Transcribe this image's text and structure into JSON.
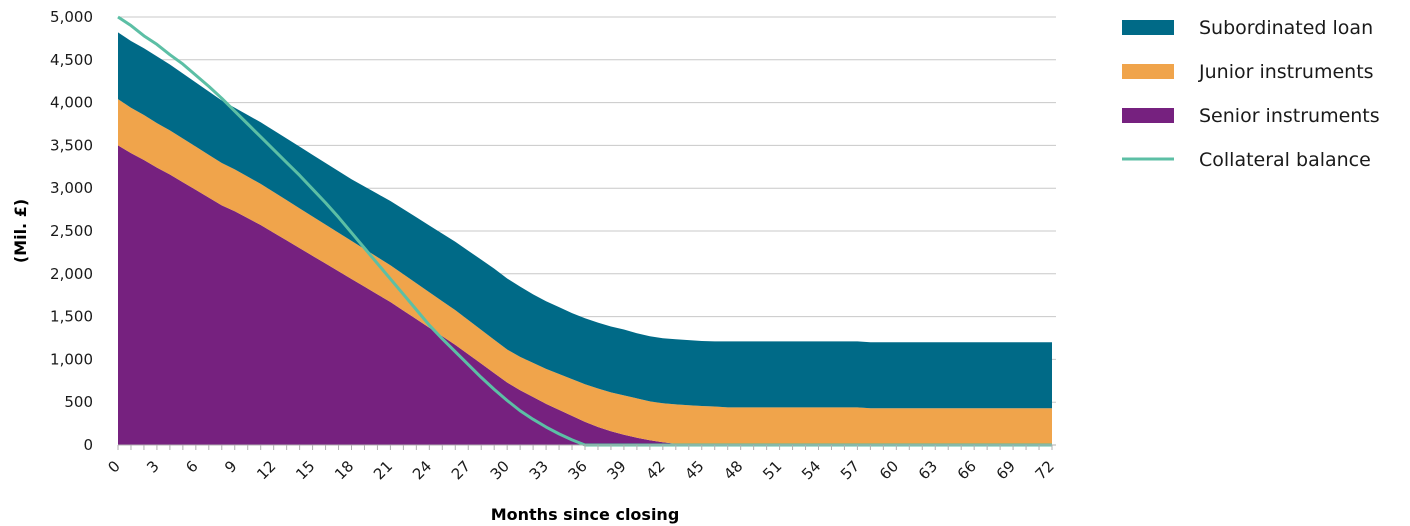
{
  "chart_data": {
    "type": "area",
    "stacked": true,
    "xlabel": "Months since closing",
    "ylabel": "(Mil. £)",
    "x": [
      0,
      1,
      2,
      3,
      4,
      5,
      6,
      7,
      8,
      9,
      10,
      11,
      12,
      13,
      14,
      15,
      16,
      17,
      18,
      19,
      20,
      21,
      22,
      23,
      24,
      25,
      26,
      27,
      28,
      29,
      30,
      31,
      32,
      33,
      34,
      35,
      36,
      37,
      38,
      39,
      40,
      41,
      42,
      43,
      44,
      45,
      46,
      47,
      48,
      49,
      50,
      51,
      52,
      53,
      54,
      55,
      56,
      57,
      58,
      59,
      60,
      61,
      62,
      63,
      64,
      65,
      66,
      67,
      68,
      69,
      70,
      71,
      72
    ],
    "xticks": [
      0,
      3,
      6,
      9,
      12,
      15,
      18,
      21,
      24,
      27,
      30,
      33,
      36,
      39,
      42,
      45,
      48,
      51,
      54,
      57,
      60,
      63,
      66,
      69,
      72
    ],
    "xlim": [
      0,
      72
    ],
    "ylim": [
      0,
      5000
    ],
    "yticks": [
      0,
      500,
      1000,
      1500,
      2000,
      2500,
      3000,
      3500,
      4000,
      4500,
      5000
    ],
    "ytick_labels": [
      "0",
      "500",
      "1,000",
      "1,500",
      "2,000",
      "2,500",
      "3,000",
      "3,500",
      "4,000",
      "4,500",
      "5,000"
    ],
    "grid": "horizontal",
    "legend_position": "top-right",
    "series": [
      {
        "name": "Senior instruments",
        "kind": "area",
        "color": "#76217F",
        "values": [
          3500,
          3410,
          3330,
          3240,
          3160,
          3070,
          2980,
          2890,
          2800,
          2730,
          2650,
          2570,
          2480,
          2390,
          2300,
          2210,
          2120,
          2030,
          1940,
          1850,
          1760,
          1670,
          1570,
          1470,
          1370,
          1270,
          1170,
          1060,
          950,
          840,
          730,
          640,
          560,
          480,
          410,
          340,
          270,
          210,
          160,
          120,
          85,
          55,
          32,
          15,
          5,
          0,
          0,
          0,
          0,
          0,
          0,
          0,
          0,
          0,
          0,
          0,
          0,
          0,
          0,
          0,
          0,
          0,
          0,
          0,
          0,
          0,
          0,
          0,
          0,
          0,
          0,
          0,
          0
        ]
      },
      {
        "name": "Junior instruments",
        "kind": "area",
        "color": "#F0A44B",
        "values": [
          540,
          530,
          525,
          520,
          515,
          510,
          505,
          500,
          495,
          490,
          485,
          480,
          475,
          470,
          465,
          460,
          455,
          450,
          445,
          440,
          435,
          430,
          425,
          420,
          415,
          410,
          405,
          400,
          395,
          390,
          385,
          390,
          400,
          410,
          420,
          430,
          440,
          450,
          455,
          460,
          460,
          455,
          455,
          460,
          460,
          455,
          450,
          440,
          440,
          440,
          440,
          440,
          440,
          440,
          440,
          440,
          440,
          440,
          430,
          430,
          430,
          430,
          430,
          430,
          430,
          430,
          430,
          430,
          430,
          430,
          430,
          430,
          430
        ]
      },
      {
        "name": "Subordinated loan",
        "kind": "area",
        "color": "#006A87",
        "values": [
          780,
          780,
          780,
          780,
          770,
          760,
          750,
          740,
          730,
          720,
          720,
          720,
          720,
          720,
          720,
          720,
          720,
          720,
          720,
          730,
          740,
          750,
          760,
          770,
          780,
          790,
          800,
          810,
          820,
          830,
          830,
          820,
          800,
          790,
          780,
          770,
          770,
          770,
          770,
          770,
          760,
          760,
          760,
          760,
          760,
          760,
          760,
          770,
          770,
          770,
          770,
          770,
          770,
          770,
          770,
          770,
          770,
          770,
          770,
          770,
          770,
          770,
          770,
          770,
          770,
          770,
          770,
          770,
          770,
          770,
          770,
          770,
          770
        ]
      },
      {
        "name": "Collateral balance",
        "kind": "line",
        "color": "#5CBFA5",
        "values": [
          5000,
          4900,
          4780,
          4680,
          4560,
          4450,
          4320,
          4190,
          4050,
          3900,
          3750,
          3600,
          3450,
          3300,
          3150,
          2990,
          2830,
          2660,
          2480,
          2300,
          2120,
          1940,
          1760,
          1580,
          1400,
          1240,
          1090,
          940,
          790,
          650,
          520,
          400,
          300,
          210,
          130,
          60,
          0,
          0,
          0,
          0,
          0,
          0,
          0,
          0,
          0,
          0,
          0,
          0,
          0,
          0,
          0,
          0,
          0,
          0,
          0,
          0,
          0,
          0,
          0,
          0,
          0,
          0,
          0,
          0,
          0,
          0,
          0,
          0,
          0,
          0,
          0,
          0,
          0
        ]
      }
    ]
  }
}
